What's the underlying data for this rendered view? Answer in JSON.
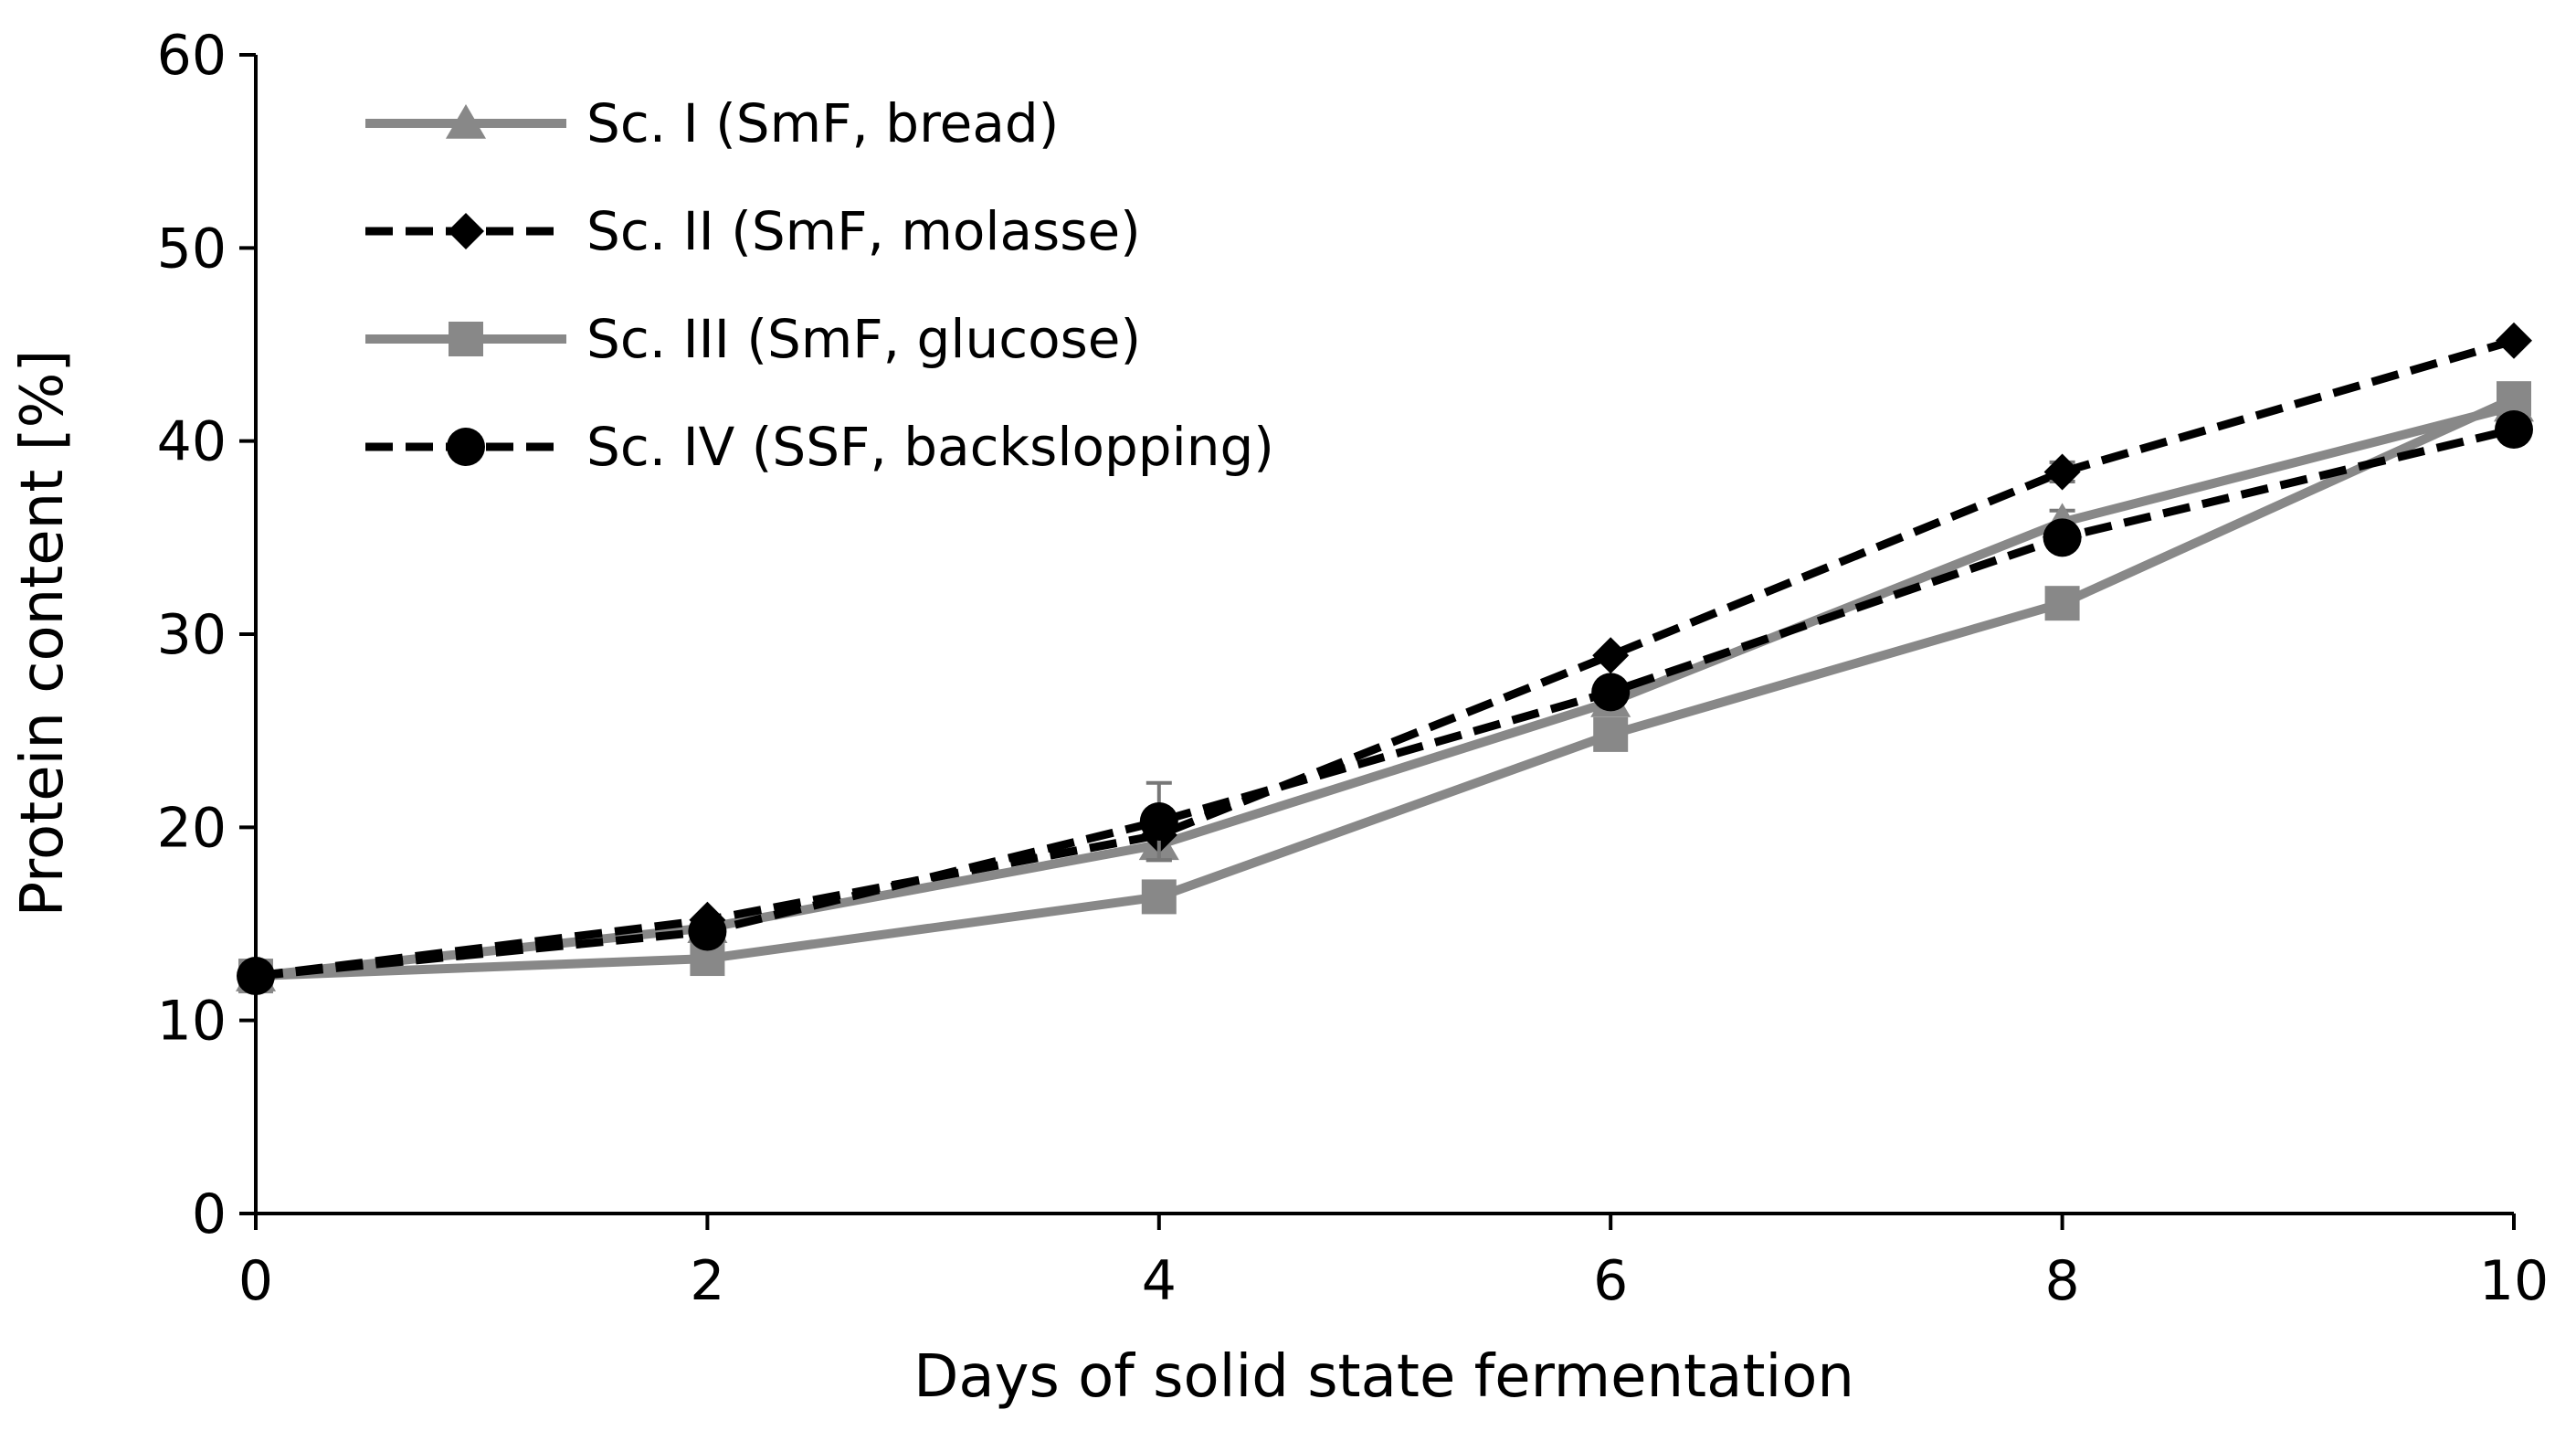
{
  "chart_data": {
    "type": "line",
    "title": "",
    "xlabel": "Days of solid state fermentation",
    "ylabel": "Protein  content [%]",
    "x": [
      0,
      2,
      4,
      6,
      8,
      10
    ],
    "xlim": [
      0,
      10
    ],
    "ylim": [
      0,
      60
    ],
    "xticks": [
      "0",
      "2",
      "4",
      "6",
      "8",
      "10"
    ],
    "yticks": [
      "0",
      "10",
      "20",
      "30",
      "40",
      "50",
      "60"
    ],
    "grid": false,
    "legend_position": "top-left",
    "series": [
      {
        "name": "Sc. I (SmF, bread)",
        "values": [
          12.3,
          14.8,
          19.1,
          26.5,
          35.8,
          41.8
        ],
        "errors": [
          0,
          0,
          0,
          0,
          0.6,
          0
        ],
        "color": "#888888",
        "line_style": "solid",
        "marker": "triangle"
      },
      {
        "name": "Sc. II (SmF, molasse)",
        "values": [
          12.3,
          15.2,
          19.6,
          28.9,
          38.4,
          45.2
        ],
        "errors": [
          0,
          0,
          1.3,
          0,
          0.5,
          0
        ],
        "color": "#000000",
        "line_style": "dashed",
        "marker": "diamond"
      },
      {
        "name": "Sc. III (SmF, glucose)",
        "values": [
          12.3,
          13.2,
          16.4,
          24.8,
          31.6,
          42.2
        ],
        "errors": [
          0,
          0,
          0,
          0,
          0,
          0
        ],
        "color": "#888888",
        "line_style": "solid",
        "marker": "square"
      },
      {
        "name": "Sc. IV (SSF, backslopping)",
        "values": [
          12.3,
          14.6,
          20.3,
          27.0,
          35.0,
          40.6
        ],
        "errors": [
          0,
          0,
          2.0,
          0,
          0,
          0
        ],
        "color": "#000000",
        "line_style": "dashed",
        "marker": "circle"
      }
    ]
  }
}
